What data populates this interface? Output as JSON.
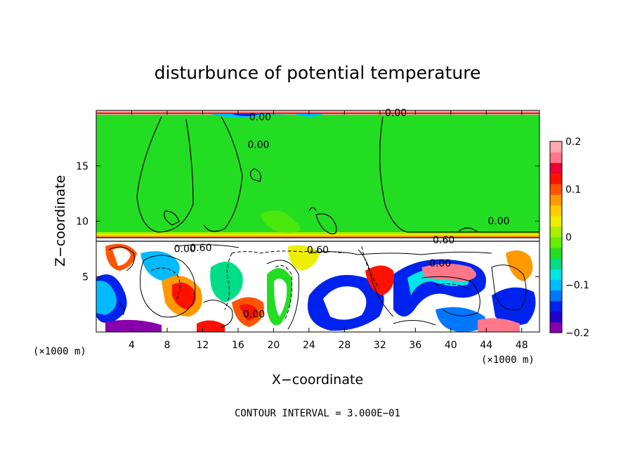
{
  "chart_data": {
    "type": "heatmap",
    "title": "disturbunce of potential temperature",
    "xlabel": "X−coordinate",
    "ylabel": "Z−coordinate",
    "x_unit": "(×1000 m)",
    "x_unit_right": "(×1000 m)",
    "xlim": [
      0,
      50
    ],
    "ylim": [
      0,
      20
    ],
    "x_ticks": [
      4,
      8,
      12,
      16,
      20,
      24,
      28,
      32,
      36,
      40,
      44,
      48
    ],
    "y_ticks": [
      5,
      10,
      15
    ],
    "contour_interval_label": "CONTOUR INTERVAL = 3.000E−01",
    "colorbar": {
      "range": [
        -0.2,
        0.2
      ],
      "ticks": [
        {
          "value": 0.2,
          "label": "0.2"
        },
        {
          "value": 0.1,
          "label": "0.1"
        },
        {
          "value": 0,
          "label": "0"
        },
        {
          "value": -0.1,
          "label": "−0.1"
        },
        {
          "value": -0.2,
          "label": "−0.2"
        }
      ],
      "colors": [
        "#8800aa",
        "#2200cc",
        "#0022ee",
        "#0077ff",
        "#00bbff",
        "#00e5e5",
        "#00dd88",
        "#22dd22",
        "#66ee00",
        "#aaee00",
        "#eeee00",
        "#ffcc00",
        "#ff9900",
        "#ff5500",
        "#ff1100",
        "#ee0033",
        "#ff7788",
        "#ffaab0"
      ]
    },
    "contour_labels": [
      {
        "x": 18.5,
        "y": 19.1,
        "text": "0.00"
      },
      {
        "x": 18.3,
        "y": 16.6,
        "text": "0.00"
      },
      {
        "x": 33.8,
        "y": 19.5,
        "text": "0.00"
      },
      {
        "x": 45.4,
        "y": 9.7,
        "text": "0.00"
      },
      {
        "x": 11.8,
        "y": 7.3,
        "text": "0.60"
      },
      {
        "x": 25.0,
        "y": 7.1,
        "text": "0.60"
      },
      {
        "x": 39.2,
        "y": 8.0,
        "text": "0.60"
      },
      {
        "x": 38.8,
        "y": 5.9,
        "text": "0.00"
      },
      {
        "x": 17.8,
        "y": 1.3,
        "text": "0.00"
      },
      {
        "x": 10.0,
        "y": 7.2,
        "text": "0.00"
      }
    ]
  }
}
